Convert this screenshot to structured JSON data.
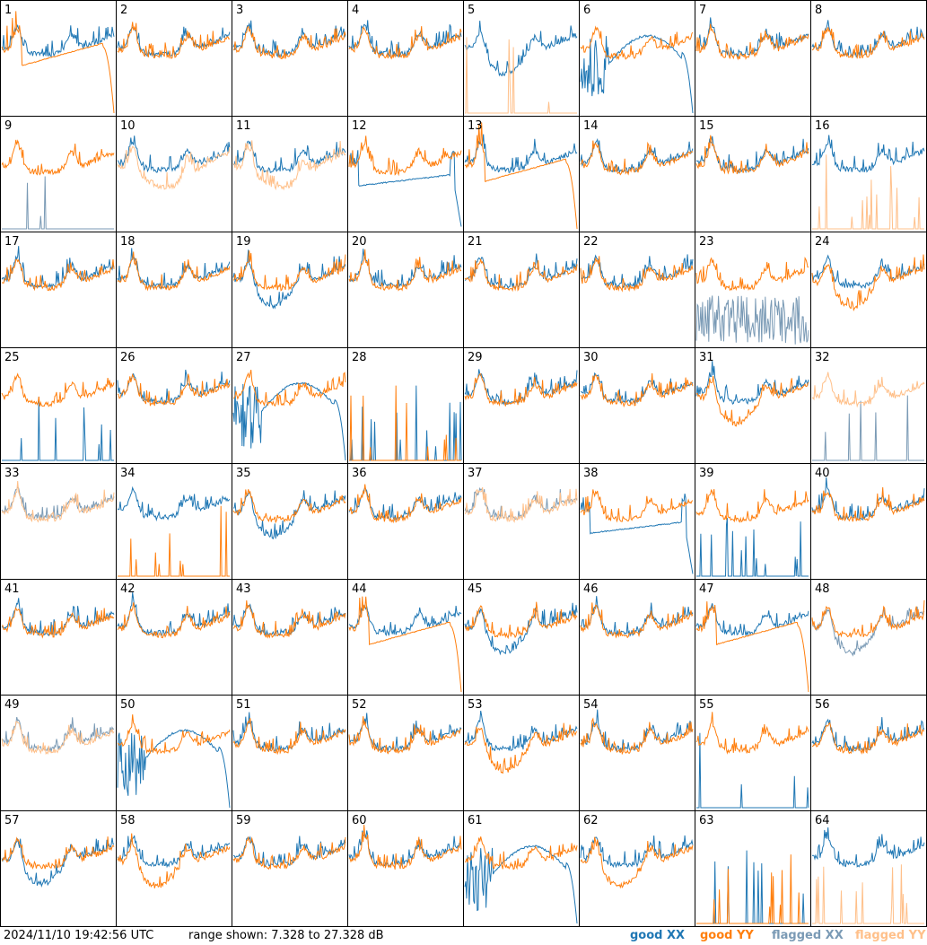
{
  "colors": {
    "good_xx": "#1f77b4",
    "good_yy": "#ff7f0e",
    "flagged_xx": "#7a9ab5",
    "flagged_yy": "#ffc08a"
  },
  "footer": {
    "timestamp": "2024/11/10 19:42:56 UTC",
    "range": "range shown: 7.328 to 27.328 dB",
    "legend": [
      "good XX",
      "good YY",
      "flagged XX",
      "flagged YY"
    ]
  },
  "chart_data": {
    "type": "line",
    "layout": "8x8 small multiples of antenna spectra",
    "y_range_db": [
      7.328,
      27.328
    ],
    "panels": [
      {
        "id": "1",
        "xx": "good",
        "yy": "good",
        "xx_shape": "normal",
        "yy_shape": "trough_dropoff"
      },
      {
        "id": "2",
        "xx": "good",
        "yy": "good",
        "xx_shape": "normal",
        "yy_shape": "normal"
      },
      {
        "id": "3",
        "xx": "good",
        "yy": "good",
        "xx_shape": "normal",
        "yy_shape": "normal"
      },
      {
        "id": "4",
        "xx": "good",
        "yy": "good",
        "xx_shape": "normal",
        "yy_shape": "normal"
      },
      {
        "id": "5",
        "xx": "good",
        "yy": "flagged",
        "xx_shape": "dip",
        "yy_shape": "spikes"
      },
      {
        "id": "6",
        "xx": "good",
        "yy": "good",
        "xx_shape": "deep_dropoff",
        "yy_shape": "normal"
      },
      {
        "id": "7",
        "xx": "good",
        "yy": "good",
        "xx_shape": "normal",
        "yy_shape": "normal"
      },
      {
        "id": "8",
        "xx": "good",
        "yy": "good",
        "xx_shape": "normal",
        "yy_shape": "normal"
      },
      {
        "id": "9",
        "xx": "flagged",
        "yy": "good",
        "xx_shape": "spikes",
        "yy_shape": "normal"
      },
      {
        "id": "10",
        "xx": "good",
        "yy": "flagged",
        "xx_shape": "normal",
        "yy_shape": "low"
      },
      {
        "id": "11",
        "xx": "good",
        "yy": "flagged",
        "xx_shape": "normal",
        "yy_shape": "low"
      },
      {
        "id": "12",
        "xx": "good",
        "yy": "good",
        "xx_shape": "dropoff",
        "yy_shape": "normal"
      },
      {
        "id": "13",
        "xx": "good",
        "yy": "good",
        "xx_shape": "normal",
        "yy_shape": "trough_dropoff"
      },
      {
        "id": "14",
        "xx": "good",
        "yy": "good",
        "xx_shape": "normal",
        "yy_shape": "normal"
      },
      {
        "id": "15",
        "xx": "good",
        "yy": "good",
        "xx_shape": "normal",
        "yy_shape": "normal"
      },
      {
        "id": "16",
        "xx": "good",
        "yy": "flagged",
        "xx_shape": "normal",
        "yy_shape": "spikes"
      },
      {
        "id": "17",
        "xx": "good",
        "yy": "good",
        "xx_shape": "normal",
        "yy_shape": "normal"
      },
      {
        "id": "18",
        "xx": "good",
        "yy": "good",
        "xx_shape": "normal",
        "yy_shape": "normal"
      },
      {
        "id": "19",
        "xx": "good",
        "yy": "good",
        "xx_shape": "dip",
        "yy_shape": "normal"
      },
      {
        "id": "20",
        "xx": "good",
        "yy": "good",
        "xx_shape": "normal",
        "yy_shape": "normal"
      },
      {
        "id": "21",
        "xx": "good",
        "yy": "good",
        "xx_shape": "normal",
        "yy_shape": "normal"
      },
      {
        "id": "22",
        "xx": "good",
        "yy": "good",
        "xx_shape": "normal",
        "yy_shape": "normal"
      },
      {
        "id": "23",
        "xx": "flagged",
        "yy": "good",
        "xx_shape": "noisy",
        "yy_shape": "normal"
      },
      {
        "id": "24",
        "xx": "good",
        "yy": "good",
        "xx_shape": "normal",
        "yy_shape": "dip"
      },
      {
        "id": "25",
        "xx": "good",
        "yy": "good",
        "xx_shape": "spikes",
        "yy_shape": "normal"
      },
      {
        "id": "26",
        "xx": "good",
        "yy": "good",
        "xx_shape": "normal",
        "yy_shape": "normal"
      },
      {
        "id": "27",
        "xx": "good",
        "yy": "good",
        "xx_shape": "deep_dropoff",
        "yy_shape": "normal"
      },
      {
        "id": "28",
        "xx": "good",
        "yy": "good",
        "xx_shape": "spikes",
        "yy_shape": "spikes"
      },
      {
        "id": "29",
        "xx": "good",
        "yy": "good",
        "xx_shape": "normal",
        "yy_shape": "normal"
      },
      {
        "id": "30",
        "xx": "good",
        "yy": "good",
        "xx_shape": "normal",
        "yy_shape": "normal"
      },
      {
        "id": "31",
        "xx": "good",
        "yy": "good",
        "xx_shape": "normal",
        "yy_shape": "dip"
      },
      {
        "id": "32",
        "xx": "flagged",
        "yy": "flagged",
        "xx_shape": "spikes",
        "yy_shape": "normal"
      },
      {
        "id": "33",
        "xx": "flagged",
        "yy": "flagged",
        "xx_shape": "normal",
        "yy_shape": "normal"
      },
      {
        "id": "34",
        "xx": "good",
        "yy": "good",
        "xx_shape": "normal",
        "yy_shape": "spikes"
      },
      {
        "id": "35",
        "xx": "good",
        "yy": "good",
        "xx_shape": "dip",
        "yy_shape": "normal"
      },
      {
        "id": "36",
        "xx": "good",
        "yy": "good",
        "xx_shape": "normal",
        "yy_shape": "normal"
      },
      {
        "id": "37",
        "xx": "flagged",
        "yy": "flagged",
        "xx_shape": "normal",
        "yy_shape": "normal"
      },
      {
        "id": "38",
        "xx": "good",
        "yy": "good",
        "xx_shape": "dropoff",
        "yy_shape": "normal"
      },
      {
        "id": "39",
        "xx": "good",
        "yy": "good",
        "xx_shape": "spikes",
        "yy_shape": "normal"
      },
      {
        "id": "40",
        "xx": "good",
        "yy": "good",
        "xx_shape": "normal",
        "yy_shape": "normal"
      },
      {
        "id": "41",
        "xx": "good",
        "yy": "good",
        "xx_shape": "normal",
        "yy_shape": "normal"
      },
      {
        "id": "42",
        "xx": "good",
        "yy": "good",
        "xx_shape": "normal",
        "yy_shape": "normal"
      },
      {
        "id": "43",
        "xx": "good",
        "yy": "good",
        "xx_shape": "normal",
        "yy_shape": "normal"
      },
      {
        "id": "44",
        "xx": "good",
        "yy": "good",
        "xx_shape": "normal",
        "yy_shape": "trough_dropoff"
      },
      {
        "id": "45",
        "xx": "good",
        "yy": "good",
        "xx_shape": "dip",
        "yy_shape": "normal"
      },
      {
        "id": "46",
        "xx": "good",
        "yy": "good",
        "xx_shape": "normal",
        "yy_shape": "normal"
      },
      {
        "id": "47",
        "xx": "good",
        "yy": "good",
        "xx_shape": "normal",
        "yy_shape": "trough_dropoff"
      },
      {
        "id": "48",
        "xx": "flagged",
        "yy": "good",
        "xx_shape": "dip",
        "yy_shape": "normal"
      },
      {
        "id": "49",
        "xx": "flagged",
        "yy": "flagged",
        "xx_shape": "normal",
        "yy_shape": "normal"
      },
      {
        "id": "50",
        "xx": "good",
        "yy": "good",
        "xx_shape": "deep_dropoff",
        "yy_shape": "normal"
      },
      {
        "id": "51",
        "xx": "good",
        "yy": "good",
        "xx_shape": "normal",
        "yy_shape": "normal"
      },
      {
        "id": "52",
        "xx": "good",
        "yy": "good",
        "xx_shape": "normal",
        "yy_shape": "normal"
      },
      {
        "id": "53",
        "xx": "good",
        "yy": "good",
        "xx_shape": "normal",
        "yy_shape": "dip"
      },
      {
        "id": "54",
        "xx": "good",
        "yy": "good",
        "xx_shape": "normal",
        "yy_shape": "normal"
      },
      {
        "id": "55",
        "xx": "good",
        "yy": "good",
        "xx_shape": "spikes",
        "yy_shape": "normal"
      },
      {
        "id": "56",
        "xx": "good",
        "yy": "good",
        "xx_shape": "normal",
        "yy_shape": "normal"
      },
      {
        "id": "57",
        "xx": "good",
        "yy": "good",
        "xx_shape": "dip",
        "yy_shape": "normal"
      },
      {
        "id": "58",
        "xx": "good",
        "yy": "good",
        "xx_shape": "normal",
        "yy_shape": "dip"
      },
      {
        "id": "59",
        "xx": "good",
        "yy": "good",
        "xx_shape": "normal",
        "yy_shape": "normal"
      },
      {
        "id": "60",
        "xx": "good",
        "yy": "good",
        "xx_shape": "normal",
        "yy_shape": "normal"
      },
      {
        "id": "61",
        "xx": "good",
        "yy": "good",
        "xx_shape": "deep_dropoff",
        "yy_shape": "normal"
      },
      {
        "id": "62",
        "xx": "good",
        "yy": "good",
        "xx_shape": "normal",
        "yy_shape": "dip"
      },
      {
        "id": "63",
        "xx": "good",
        "yy": "good",
        "xx_shape": "spikes",
        "yy_shape": "spikes"
      },
      {
        "id": "64",
        "xx": "good",
        "yy": "flagged",
        "xx_shape": "normal",
        "yy_shape": "spikes"
      }
    ]
  }
}
